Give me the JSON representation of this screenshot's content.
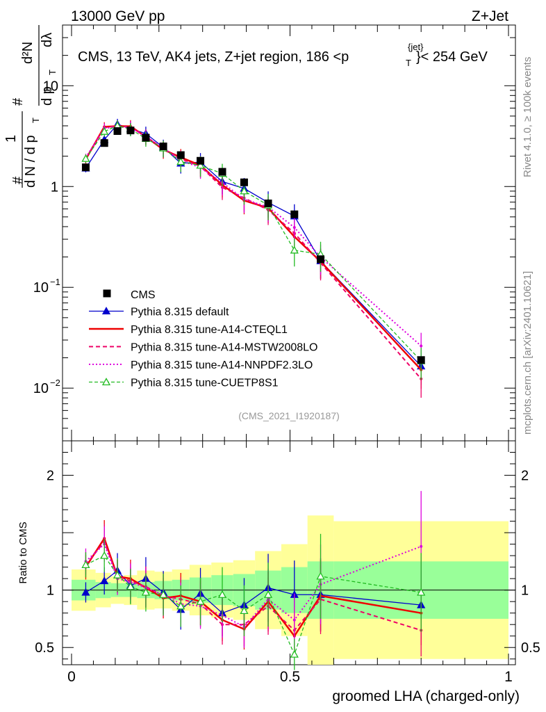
{
  "header": {
    "left": "13000 GeV pp",
    "right": "Z+Jet"
  },
  "side_labels": {
    "rivet": "Rivet 4.1.0, ≥ 100k events",
    "mcplots": "mcplots.cern.ch [arXiv:2401.10621]"
  },
  "main_panel": {
    "title_main": "CMS, 13 TeV, AK4 jets, Z+jet region, 186 <p",
    "title_sup": "{jet}",
    "title_sub": "T",
    "title_end": "}< 254 GeV",
    "ylabel_hash1": "#",
    "ylabel_one": "1",
    "ylabel_dN": "d N / d p",
    "ylabel_T1": "T",
    "ylabel_hash2": "#",
    "ylabel_dpt": "d p",
    "ylabel_T2": "T",
    "ylabel_d2N": "d²N",
    "ylabel_dlambda": "dλ",
    "watermark": "(CMS_2021_I1920187)"
  },
  "ratio_panel": {
    "ylabel": "Ratio to CMS"
  },
  "colors": {
    "data": "#000000",
    "default": "#0000cc",
    "a14_cteql1": "#ee0000",
    "a14_mstw": "#ee0066",
    "a14_nnpdf": "#dd00dd",
    "cuetp8s1": "#22bb22",
    "band_yellow": "#ffff99",
    "band_green": "#99ff99"
  },
  "chart_data": {
    "type": "line",
    "xlabel": "groomed LHA (charged-only)",
    "ylabel": "1/dN/dpT d²N/dpT dλ",
    "xlim": [
      0,
      1
    ],
    "ylim": [
      0.003,
      40
    ],
    "yscale": "log",
    "ratio_ylim": [
      0.35,
      2.3
    ],
    "x_ticks": [
      "0",
      "0.5",
      "1"
    ],
    "y_ticks_main": [
      {
        "value": 0.01,
        "base": "10",
        "exp": "−2"
      },
      {
        "value": 0.1,
        "base": "10",
        "exp": "−1"
      },
      {
        "value": 1,
        "base": "1",
        "exp": ""
      },
      {
        "value": 10,
        "base": "10",
        "exp": ""
      }
    ],
    "y_ticks_ratio": [
      0.5,
      1,
      2
    ],
    "y_ticks_ratio_labels": [
      "0.5",
      "1",
      "2"
    ],
    "x": [
      0.0325,
      0.075,
      0.105,
      0.135,
      0.17,
      0.21,
      0.25,
      0.295,
      0.345,
      0.395,
      0.45,
      0.51,
      0.57,
      0.8
    ],
    "bin_edges": [
      0.0,
      0.055,
      0.09,
      0.12,
      0.15,
      0.19,
      0.23,
      0.27,
      0.32,
      0.37,
      0.42,
      0.48,
      0.54,
      0.6,
      1.0
    ],
    "data": {
      "name": "CMS",
      "values": [
        1.55,
        2.7,
        3.55,
        3.6,
        3.05,
        2.5,
        2.05,
        1.8,
        1.4,
        1.1,
        0.68,
        0.53,
        0.19,
        0.019
      ],
      "band_green": [
        0.09,
        0.07,
        0.06,
        0.06,
        0.07,
        0.08,
        0.09,
        0.11,
        0.13,
        0.14,
        0.17,
        0.2,
        0.25,
        0.25
      ],
      "band_yellow": [
        0.18,
        0.15,
        0.12,
        0.13,
        0.17,
        0.16,
        0.18,
        0.22,
        0.24,
        0.26,
        0.34,
        0.4,
        0.65,
        0.6
      ]
    },
    "series": [
      {
        "name": "Pythia 8.315 default",
        "key": "default",
        "marker": "triangle-filled",
        "dash": "",
        "ratios": [
          0.98,
          1.08,
          1.17,
          1.04,
          1.1,
          0.98,
          0.83,
          0.97,
          0.8,
          0.87,
          1.02,
          0.96,
          0.96,
          0.87
        ]
      },
      {
        "name": "Pythia 8.315 tune-A14-CTEQL1",
        "key": "a14_cteql1",
        "marker": "none",
        "dash": "",
        "width": 2.5,
        "ratios": [
          1.2,
          1.45,
          1.12,
          1.1,
          1.02,
          0.93,
          0.95,
          0.9,
          0.74,
          0.66,
          0.9,
          0.6,
          0.95,
          0.8
        ]
      },
      {
        "name": "Pythia 8.315 tune-A14-MSTW2008LO",
        "key": "a14_mstw",
        "marker": "none",
        "dash": "6,4",
        "width": 2,
        "ratios": [
          1.22,
          1.42,
          1.12,
          1.08,
          1.03,
          0.95,
          0.92,
          0.88,
          0.7,
          0.7,
          0.86,
          0.65,
          0.92,
          0.65
        ]
      },
      {
        "name": "Pythia 8.315 tune-A14-NNPDF2.3LO",
        "key": "a14_nnpdf",
        "marker": "none",
        "dash": "2,3",
        "width": 2,
        "ratios": [
          1.25,
          1.4,
          1.1,
          1.07,
          1.02,
          0.96,
          0.88,
          0.86,
          0.78,
          0.68,
          0.92,
          0.74,
          1.05,
          1.38
        ]
      },
      {
        "name": "Pythia 8.315 tune-CUETP8S1",
        "key": "cuetp8s1",
        "marker": "triangle-open",
        "dash": "5,3",
        "ratios": [
          1.22,
          1.3,
          1.13,
          1.03,
          0.98,
          0.96,
          0.86,
          0.9,
          0.96,
          0.82,
          0.96,
          0.44,
          1.12,
          0.98
        ]
      }
    ]
  }
}
